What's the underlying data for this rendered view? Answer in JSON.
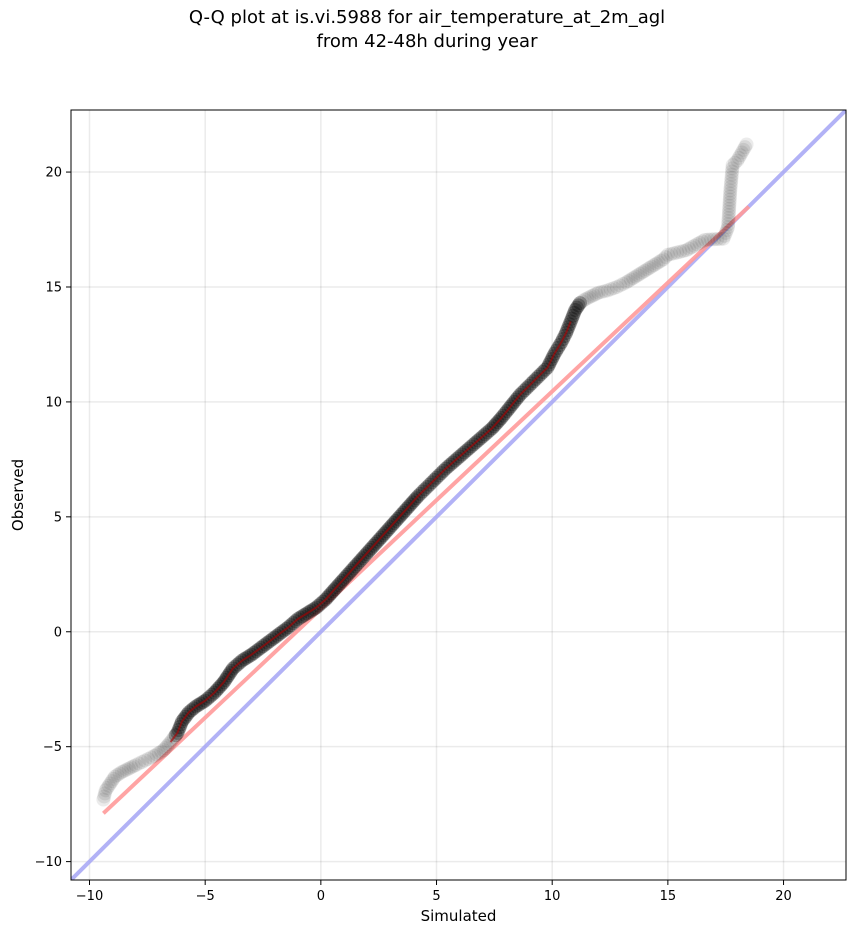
{
  "chart_data": {
    "type": "scatter",
    "title_lines": [
      "Q-Q plot at is.vi.5988 for air_temperature_at_2m_agl",
      "from 42-48h during year"
    ],
    "xlabel": "Simulated",
    "ylabel": "Observed",
    "xlim": [
      -10.8,
      22.7
    ],
    "ylim": [
      -10.8,
      22.7
    ],
    "xticks": [
      -10,
      -5,
      0,
      5,
      10,
      15,
      20
    ],
    "yticks": [
      -10,
      -5,
      0,
      5,
      10,
      15,
      20
    ],
    "xtick_labels": [
      "−10",
      "−5",
      "0",
      "5",
      "10",
      "15",
      "20"
    ],
    "ytick_labels": [
      "−10",
      "−5",
      "0",
      "5",
      "10",
      "15",
      "20"
    ],
    "grid": true,
    "quantiles": {
      "x": [
        -9.4,
        -9.3,
        -9.1,
        -8.9,
        -8.6,
        -8.3,
        -8.0,
        -7.6,
        -7.2,
        -6.8,
        -6.5,
        -6.2,
        -6.0,
        -5.7,
        -5.4,
        -5.0,
        -4.6,
        -4.2,
        -3.8,
        -3.4,
        -3.0,
        -2.6,
        -2.2,
        -1.8,
        -1.4,
        -1.0,
        -0.6,
        -0.2,
        0.2,
        0.6,
        1.0,
        1.4,
        1.8,
        2.2,
        2.6,
        3.0,
        3.4,
        3.8,
        4.2,
        4.6,
        5.0,
        5.4,
        5.8,
        6.2,
        6.6,
        7.0,
        7.4,
        7.8,
        8.2,
        8.6,
        9.0,
        9.4,
        9.8,
        10.1,
        10.4,
        10.6,
        10.8,
        11.0,
        11.2,
        11.4,
        11.7,
        12.0,
        12.4,
        12.8,
        13.2,
        13.6,
        14.0,
        14.4,
        14.8,
        15.0,
        15.8,
        16.6,
        17.4,
        17.6,
        17.7,
        17.8,
        18.0,
        18.4
      ],
      "y": [
        -7.3,
        -6.9,
        -6.6,
        -6.3,
        -6.1,
        -5.95,
        -5.8,
        -5.6,
        -5.4,
        -5.15,
        -4.8,
        -4.4,
        -3.9,
        -3.5,
        -3.25,
        -3.0,
        -2.65,
        -2.2,
        -1.6,
        -1.25,
        -1.0,
        -0.7,
        -0.4,
        -0.1,
        0.2,
        0.55,
        0.8,
        1.05,
        1.4,
        1.85,
        2.3,
        2.75,
        3.2,
        3.65,
        4.1,
        4.55,
        5.0,
        5.45,
        5.9,
        6.3,
        6.7,
        7.1,
        7.45,
        7.8,
        8.15,
        8.5,
        8.85,
        9.3,
        9.8,
        10.3,
        10.7,
        11.1,
        11.5,
        12.1,
        12.6,
        13.0,
        13.5,
        14.0,
        14.3,
        14.45,
        14.6,
        14.75,
        14.85,
        15.0,
        15.2,
        15.45,
        15.7,
        15.95,
        16.2,
        16.4,
        16.6,
        17.05,
        17.1,
        17.6,
        19.2,
        20.3,
        20.5,
        21.2
      ]
    },
    "reference_lines": [
      {
        "type": "identity",
        "color": "#aaaaf5",
        "x": [
          -10.8,
          22.7
        ],
        "y": [
          -10.8,
          22.7
        ]
      },
      {
        "type": "fit",
        "color": "#ff9a9a",
        "x": [
          -9.4,
          18.5
        ],
        "y": [
          -7.9,
          18.5
        ]
      }
    ],
    "colors": {
      "points": "#000000",
      "core_line": "#b00000"
    }
  }
}
